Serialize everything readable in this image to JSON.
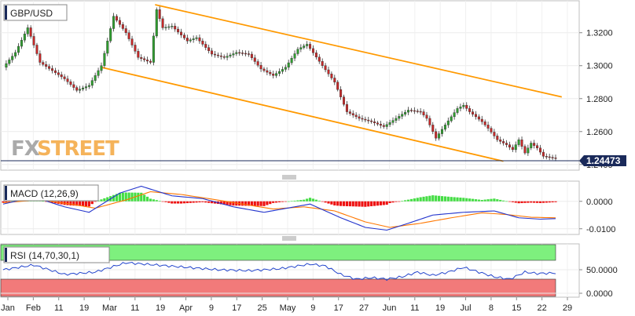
{
  "chart_data": [
    {
      "type": "candlestick",
      "title": "GBP/USD",
      "watermark": {
        "part1": "FX",
        "part2": "STREET"
      },
      "current_price": "1.24473",
      "ylim": [
        1.238,
        1.337
      ],
      "yticks": [
        "1.3200",
        "1.3000",
        "1.2800",
        "1.2600",
        "1.2400"
      ],
      "ytick_values": [
        1.32,
        1.3,
        1.28,
        1.26,
        1.24
      ],
      "xticks": [
        "Jan",
        "Feb",
        "11",
        "19",
        "Mar",
        "11",
        "19",
        "Apr",
        "9",
        "17",
        "25",
        "May",
        "9",
        "17",
        "27",
        "Jun",
        "11",
        "19",
        "Jul",
        "8",
        "15",
        "22",
        "29"
      ],
      "anchors": [
        [
          0,
          1.299
        ],
        [
          4,
          1.308
        ],
        [
          8,
          1.323
        ],
        [
          12,
          1.302
        ],
        [
          16,
          1.297
        ],
        [
          20,
          1.292
        ],
        [
          24,
          1.285
        ],
        [
          28,
          1.288
        ],
        [
          32,
          1.3
        ],
        [
          36,
          1.33
        ],
        [
          40,
          1.32
        ],
        [
          44,
          1.305
        ],
        [
          48,
          1.302
        ],
        [
          50,
          1.334
        ],
        [
          52,
          1.323
        ],
        [
          55,
          1.324
        ],
        [
          60,
          1.315
        ],
        [
          63,
          1.317
        ],
        [
          68,
          1.307
        ],
        [
          72,
          1.305
        ],
        [
          76,
          1.308
        ],
        [
          80,
          1.307
        ],
        [
          84,
          1.298
        ],
        [
          88,
          1.294
        ],
        [
          92,
          1.299
        ],
        [
          96,
          1.31
        ],
        [
          99,
          1.313
        ],
        [
          104,
          1.3
        ],
        [
          108,
          1.29
        ],
        [
          112,
          1.272
        ],
        [
          116,
          1.268
        ],
        [
          120,
          1.266
        ],
        [
          124,
          1.263
        ],
        [
          128,
          1.268
        ],
        [
          132,
          1.273
        ],
        [
          136,
          1.272
        ],
        [
          138,
          1.268
        ],
        [
          141,
          1.256
        ],
        [
          144,
          1.264
        ],
        [
          148,
          1.274
        ],
        [
          150,
          1.276
        ],
        [
          152,
          1.272
        ],
        [
          156,
          1.266
        ],
        [
          158,
          1.262
        ],
        [
          161,
          1.255
        ],
        [
          164,
          1.252
        ],
        [
          166,
          1.249
        ],
        [
          168,
          1.255
        ],
        [
          170,
          1.247
        ],
        [
          172,
          1.253
        ],
        [
          174,
          1.25
        ],
        [
          176,
          1.245
        ]
      ],
      "channel": {
        "color": "#ff9900",
        "upper": [
          [
            49.5,
            1.337
          ],
          [
            182,
            1.281
          ]
        ],
        "lower": [
          [
            32,
            1.299
          ],
          [
            163,
            1.242
          ]
        ]
      }
    },
    {
      "type": "line",
      "title": "MACD (12,26,9)",
      "ylim": [
        -0.0115,
        0.0065
      ],
      "yticks": [
        "0.0000",
        "-0.0100"
      ],
      "ytick_values": [
        0.0,
        -0.01
      ],
      "macd_anchors": [
        [
          0,
          -0.001
        ],
        [
          10,
          0.0015
        ],
        [
          20,
          -0.002
        ],
        [
          28,
          -0.004
        ],
        [
          38,
          0.003
        ],
        [
          45,
          0.0055
        ],
        [
          55,
          0.002
        ],
        [
          65,
          0.001
        ],
        [
          75,
          -0.002
        ],
        [
          85,
          -0.004
        ],
        [
          95,
          -0.002
        ],
        [
          100,
          -0.001
        ],
        [
          110,
          -0.006
        ],
        [
          118,
          -0.0095
        ],
        [
          125,
          -0.0105
        ],
        [
          132,
          -0.008
        ],
        [
          140,
          -0.005
        ],
        [
          150,
          -0.004
        ],
        [
          160,
          -0.0035
        ],
        [
          168,
          -0.006
        ],
        [
          175,
          -0.0065
        ],
        [
          180,
          -0.0063
        ]
      ],
      "signal_anchors": [
        [
          0,
          -0.0005
        ],
        [
          12,
          0.0005
        ],
        [
          22,
          -0.001
        ],
        [
          30,
          -0.0025
        ],
        [
          40,
          0.0005
        ],
        [
          48,
          0.0035
        ],
        [
          58,
          0.0025
        ],
        [
          68,
          0.0008
        ],
        [
          78,
          -0.001
        ],
        [
          88,
          -0.0028
        ],
        [
          98,
          -0.002
        ],
        [
          108,
          -0.0035
        ],
        [
          118,
          -0.0075
        ],
        [
          126,
          -0.0095
        ],
        [
          136,
          -0.008
        ],
        [
          146,
          -0.006
        ],
        [
          156,
          -0.0042
        ],
        [
          164,
          -0.0048
        ],
        [
          172,
          -0.0058
        ],
        [
          180,
          -0.006
        ]
      ],
      "macd_color": "#2233cc",
      "signal_color": "#ff7700",
      "hist_up": "#44dd44",
      "hist_down": "#ee1111"
    },
    {
      "type": "line",
      "title": "RSI (14,70,30,1)",
      "ylim": [
        -5,
        100
      ],
      "yticks": [
        "50.0000",
        "0.0000"
      ],
      "ytick_values": [
        50,
        0
      ],
      "overbought": 70,
      "oversold": 30,
      "rsi_anchors": [
        [
          0,
          50
        ],
        [
          10,
          60
        ],
        [
          20,
          40
        ],
        [
          30,
          45
        ],
        [
          40,
          65
        ],
        [
          50,
          60
        ],
        [
          60,
          55
        ],
        [
          70,
          50
        ],
        [
          80,
          48
        ],
        [
          90,
          52
        ],
        [
          100,
          62
        ],
        [
          105,
          58
        ],
        [
          110,
          40
        ],
        [
          115,
          30
        ],
        [
          120,
          33
        ],
        [
          125,
          30
        ],
        [
          130,
          35
        ],
        [
          135,
          45
        ],
        [
          140,
          38
        ],
        [
          145,
          45
        ],
        [
          150,
          55
        ],
        [
          155,
          45
        ],
        [
          160,
          35
        ],
        [
          165,
          30
        ],
        [
          170,
          45
        ],
        [
          174,
          42
        ],
        [
          180,
          43
        ]
      ],
      "line_color": "#2244cc",
      "band_high": "#7ef07e",
      "band_low": "#f27a7a"
    }
  ]
}
